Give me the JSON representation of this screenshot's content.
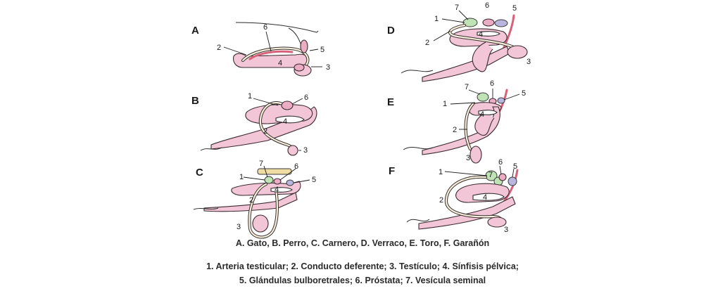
{
  "panels": {
    "A": {
      "letter": "A"
    },
    "B": {
      "letter": "B"
    },
    "C": {
      "letter": "C"
    },
    "D": {
      "letter": "D"
    },
    "E": {
      "letter": "E"
    },
    "F": {
      "letter": "F"
    }
  },
  "labels": {
    "n1": "1",
    "n2": "2",
    "n3": "3",
    "n4": "4",
    "n5": "5",
    "n6": "6",
    "n7": "7"
  },
  "captions": {
    "species": "A. Gato, B. Perro, C. Carnero, D. Verraco, E. Toro, F. Garañón",
    "legend_line1": "1. Arteria testicular; 2. Conducto deferente; 3. Testículo; 4. Sínfisis pélvica;",
    "legend_line2": "5. Glándulas bulboretrales; 6. Próstata; 7. Vesícula seminal"
  },
  "colors": {
    "penis": "#f2c6d6",
    "seminal_vesicle": "#bfe3b4",
    "bulbourethral": "#b9b4e0",
    "prostate": "#ecadc4",
    "artery": "#d8617a"
  }
}
